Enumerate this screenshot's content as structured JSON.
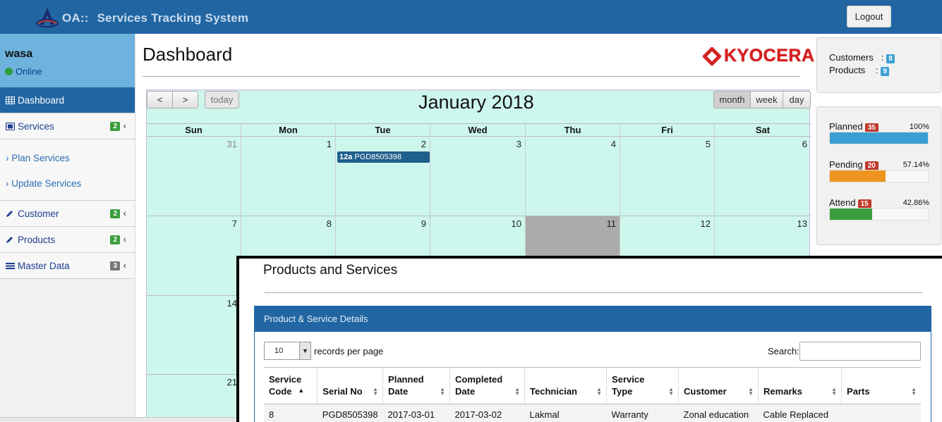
{
  "app": {
    "prefix": "OA::",
    "title": "Services Tracking System",
    "logout_label": "Logout"
  },
  "user": {
    "name": "wasa",
    "status": "Online"
  },
  "sidebar": {
    "items": [
      {
        "label": "Dashboard",
        "badge": ""
      },
      {
        "label": "Services",
        "badge": "2"
      },
      {
        "label": "Customer",
        "badge": "2"
      },
      {
        "label": "Products",
        "badge": "2"
      },
      {
        "label": "Master Data",
        "badge": "3"
      }
    ],
    "sub_items": [
      "› Plan Services",
      "› Update Services"
    ],
    "chevron": "‹"
  },
  "main": {
    "title": "Dashboard",
    "brand": "KYOCERA"
  },
  "calendar": {
    "title": "January 2018",
    "prev": "<",
    "next": ">",
    "today_label": "today",
    "views": [
      "month",
      "week",
      "day"
    ],
    "days": [
      "Sun",
      "Mon",
      "Tue",
      "Wed",
      "Thu",
      "Fri",
      "Sat"
    ],
    "week1": [
      "31",
      "1",
      "2",
      "3",
      "4",
      "5",
      "6"
    ],
    "week2": [
      "7",
      "8",
      "9",
      "10",
      "11",
      "12",
      "13"
    ],
    "week3_first": "14",
    "week4_first": "21",
    "event": {
      "time": "12a",
      "title": "PGD8505398"
    }
  },
  "stats": {
    "customers_label": "Customers",
    "customers_count": "8",
    "products_label": "Products",
    "products_count": "9"
  },
  "progress": [
    {
      "label": "Planned",
      "count": "35",
      "percent": "100%",
      "value": 100,
      "color": "#3a9fd4"
    },
    {
      "label": "Pending",
      "count": "20",
      "percent": "57.14%",
      "value": 57.14,
      "color": "#ee931e"
    },
    {
      "label": "Attend",
      "count": "15",
      "percent": "42.86%",
      "value": 42.86,
      "color": "#3a9e3c"
    }
  ],
  "overlay": {
    "title": "Products and Services",
    "panel_title": "Product & Service Details",
    "length_value": "10",
    "length_label": "records per page",
    "search_label": "Search:",
    "columns": [
      "Service Code",
      "Serial No",
      "Planned Date",
      "Completed Date",
      "Technician",
      "Service Type",
      "Customer",
      "Remarks",
      "Parts"
    ],
    "rows": [
      [
        "8",
        "PGD8505398",
        "2017-03-01",
        "2017-03-02",
        "Lakmal",
        "Warranty",
        "Zonal education",
        "Cable Replaced",
        ""
      ]
    ]
  }
}
